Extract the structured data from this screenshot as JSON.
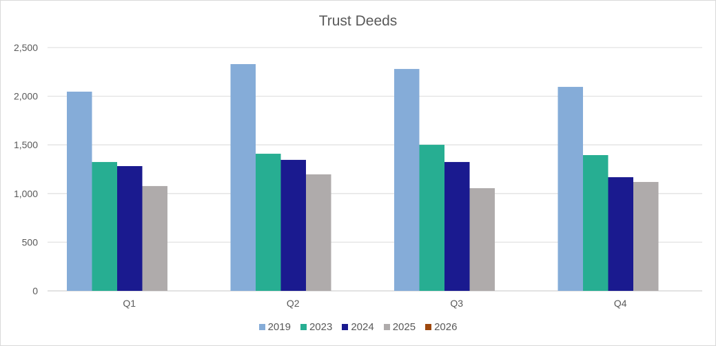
{
  "chart_data": {
    "type": "bar",
    "title": "Trust Deeds",
    "xlabel": "",
    "ylabel": "",
    "categories": [
      "Q1",
      "Q2",
      "Q3",
      "Q4"
    ],
    "series": [
      {
        "name": "2019",
        "color": "#85ACD8",
        "values": [
          2047,
          2330,
          2280,
          2096
        ]
      },
      {
        "name": "2023",
        "color": "#27AE92",
        "values": [
          1324,
          1409,
          1501,
          1395
        ]
      },
      {
        "name": "2024",
        "color": "#1A1A8F",
        "values": [
          1282,
          1346,
          1324,
          1168
        ]
      },
      {
        "name": "2025",
        "color": "#AFABAB",
        "values": [
          1077,
          1197,
          1055,
          1119
        ]
      },
      {
        "name": "2026",
        "color": "#9E480E",
        "values": [
          null,
          null,
          null,
          null
        ]
      }
    ],
    "ylim": [
      0,
      2500
    ],
    "yticks": [
      0,
      500,
      1000,
      1500,
      2000,
      2500
    ],
    "ytick_labels": [
      "0",
      "500",
      "1,000",
      "1,500",
      "2,000",
      "2,500"
    ],
    "grid": true,
    "legend_position": "bottom"
  }
}
